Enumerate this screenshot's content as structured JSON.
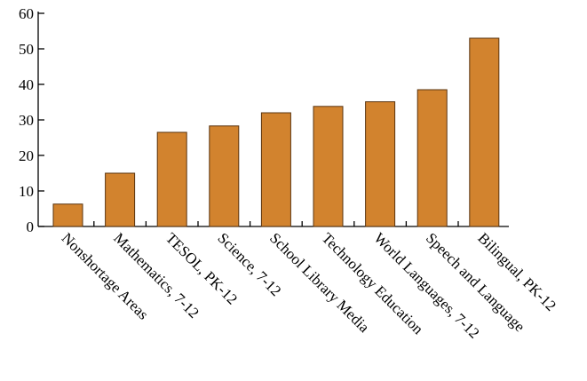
{
  "chart_data": {
    "type": "bar",
    "title": "",
    "xlabel": "",
    "ylabel": "",
    "categories": [
      "Nonshortage Areas",
      "Mathematics, 7-12",
      "TESOL, PK-12",
      "Science, 7-12",
      "School Library Media",
      "Technology Education",
      "World Languages, 7-12",
      "Speech and Language",
      "Bilingual, PK-12"
    ],
    "values": [
      6.3,
      15.0,
      26.5,
      28.3,
      32.0,
      33.8,
      35.1,
      38.5,
      53.0
    ],
    "ylim": [
      0,
      60
    ],
    "yticks": [
      0,
      10,
      20,
      30,
      40,
      50,
      60
    ],
    "grid": false,
    "bar_color": "#D2832E",
    "bar_edge_color": "#5a3410"
  }
}
